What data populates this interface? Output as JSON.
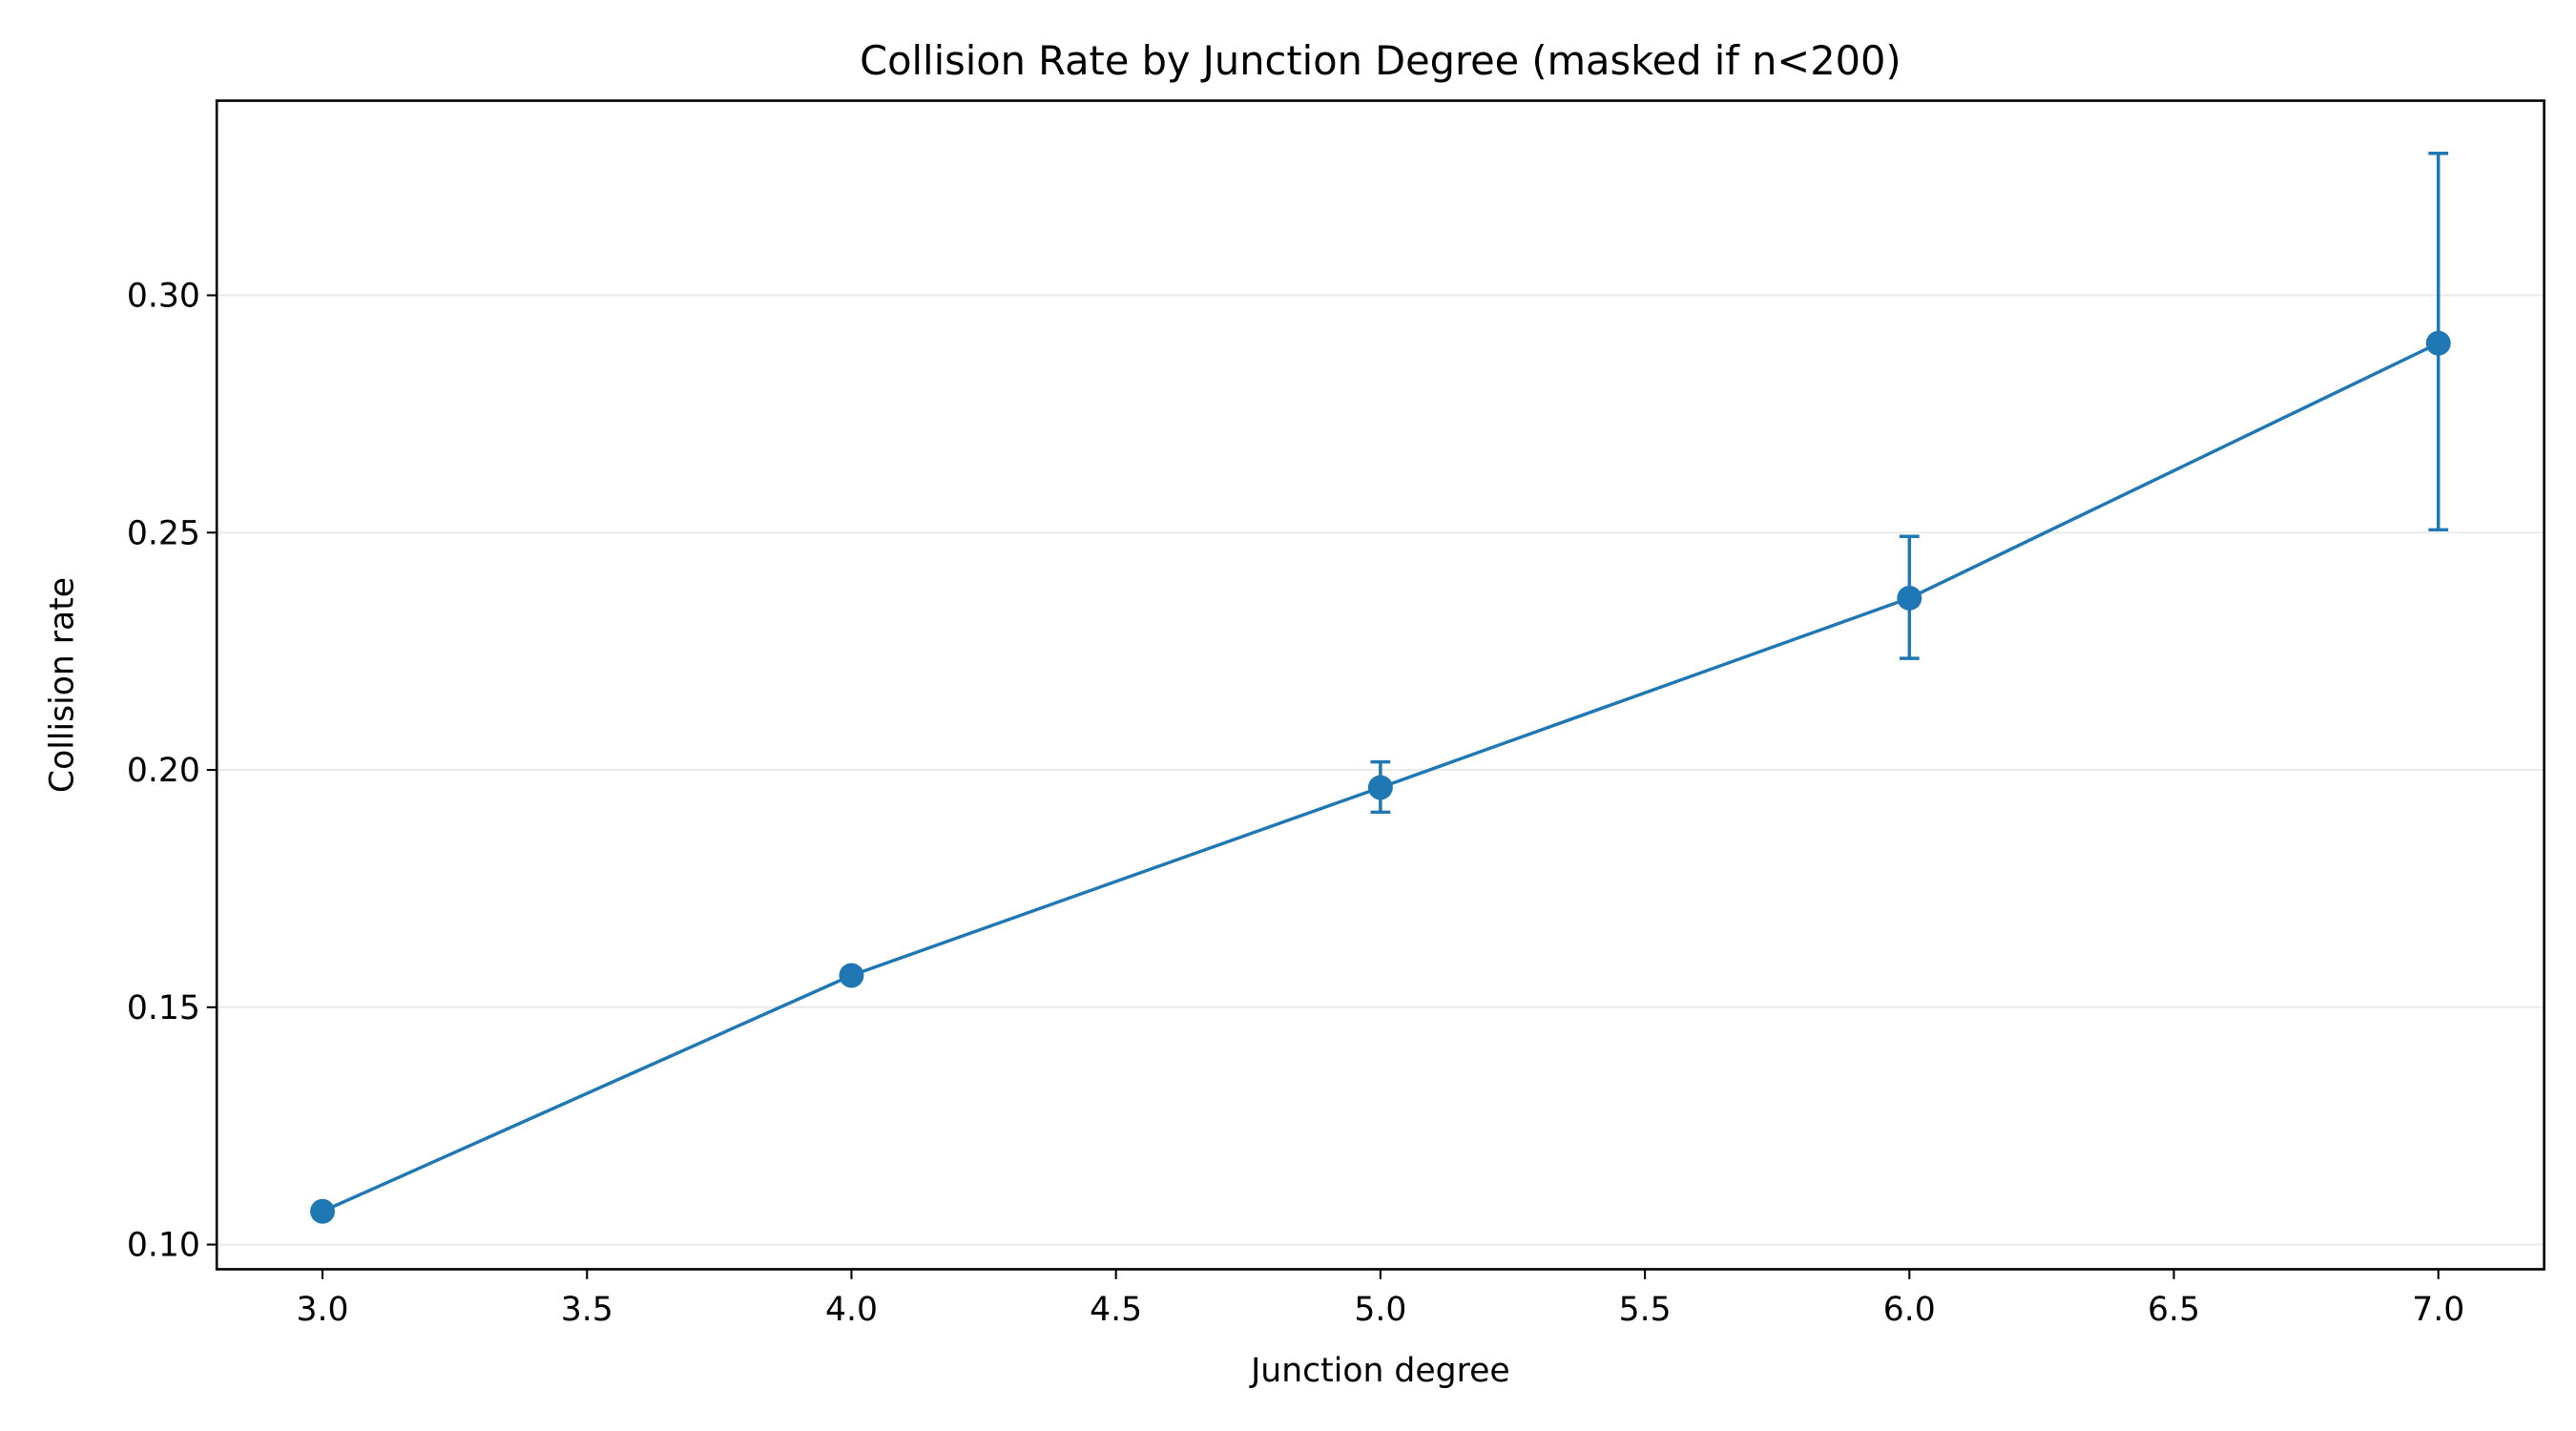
{
  "chart_data": {
    "type": "line",
    "title": "Collision Rate by Junction Degree (masked if n<200)",
    "xlabel": "Junction degree",
    "ylabel": "Collision rate",
    "xlim": [
      2.8,
      7.2
    ],
    "ylim": [
      0.0948,
      0.341
    ],
    "xticks": [
      "3.0",
      "3.5",
      "4.0",
      "4.5",
      "5.0",
      "5.5",
      "6.0",
      "6.5",
      "7.0"
    ],
    "yticks": [
      "0.10",
      "0.15",
      "0.20",
      "0.25",
      "0.30"
    ],
    "grid": "horizontal",
    "color": "#1f77b4",
    "series": [
      {
        "x": [
          3,
          4,
          5,
          6,
          7
        ],
        "y": [
          0.107,
          0.1567,
          0.1963,
          0.2362,
          0.2899
        ],
        "err_low": [
          0.107,
          0.1555,
          0.1911,
          0.2235,
          0.2506
        ],
        "err_high": [
          0.107,
          0.158,
          0.2017,
          0.2492,
          0.3299
        ]
      }
    ]
  }
}
